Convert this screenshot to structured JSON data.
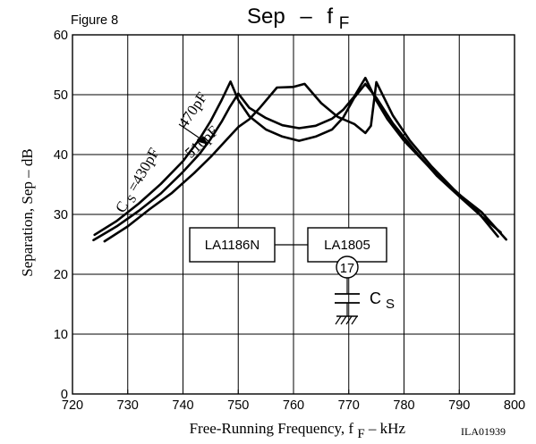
{
  "chart_data": {
    "type": "line",
    "figure_label": "Figure 8",
    "title": {
      "main": "Sep",
      "dash": "–",
      "symbol": "f",
      "subscript": "F"
    },
    "ylabel": "Separation, Sep  –  dB",
    "xlabel": {
      "prefix": "Free-Running Frequency, f",
      "subscript": "F",
      "suffix": "  –  kHz"
    },
    "code": "ILA01939",
    "xlim": [
      720,
      800
    ],
    "ylim": [
      0,
      60
    ],
    "xticks": [
      720,
      730,
      740,
      750,
      760,
      770,
      780,
      790,
      800
    ],
    "yticks": [
      0,
      10,
      20,
      30,
      40,
      50,
      60
    ],
    "grid": true,
    "series": [
      {
        "name": "CS=430pF",
        "x": [
          723.8,
          728,
          732,
          736,
          740,
          743,
          745,
          747,
          748.5,
          750,
          752,
          755,
          758,
          761,
          764,
          767,
          769,
          771,
          773,
          775,
          777,
          780,
          785,
          790,
          794,
          798.5
        ],
        "y": [
          25.7,
          28,
          30.6,
          33.5,
          37.1,
          40.1,
          42.6,
          45.5,
          48,
          50.2,
          47.8,
          46.1,
          44.9,
          44.4,
          44.8,
          46,
          47.5,
          49.7,
          52.8,
          49,
          45.9,
          42.3,
          37.5,
          33.3,
          30.4,
          25.8
        ]
      },
      {
        "name": "470pF",
        "x": [
          724,
          728,
          732,
          736,
          740,
          743,
          745,
          747,
          748.6,
          750,
          752,
          755,
          758,
          761,
          764,
          767,
          769,
          771,
          773,
          775,
          778,
          782,
          786,
          790,
          794,
          797.5
        ],
        "y": [
          26.6,
          28.9,
          31.8,
          35.1,
          38.9,
          42.6,
          45.6,
          49.1,
          52.2,
          49.1,
          46.4,
          44.2,
          43,
          42.3,
          43,
          44.2,
          46.2,
          49.5,
          51.8,
          49.5,
          45.2,
          40.6,
          36.4,
          33,
          29.7,
          27
        ]
      },
      {
        "name": "510pF",
        "x": [
          725.8,
          730,
          734,
          738,
          742,
          745,
          748,
          750,
          752,
          754,
          757,
          760,
          762,
          765,
          768,
          771,
          773,
          774,
          775,
          778,
          781,
          785,
          789,
          793,
          797
        ],
        "y": [
          25.5,
          28,
          30.9,
          33.6,
          36.9,
          39.6,
          42.6,
          44.6,
          45.9,
          47.9,
          51.2,
          51.3,
          51.8,
          48.6,
          46.3,
          45.1,
          43.6,
          44.8,
          52.1,
          46.5,
          42.4,
          38,
          34.2,
          30.8,
          26.3
        ]
      }
    ],
    "annotations": [
      {
        "id": "cs430",
        "prefix": "C",
        "subscript": "S",
        "suffix": "=430pF",
        "x": 732.5,
        "y": 35.3
      },
      {
        "id": "c470",
        "text": "470pF",
        "x": 742.5,
        "y": 47
      },
      {
        "id": "c510",
        "text": "510pF",
        "x": 744,
        "y": 41.5
      }
    ],
    "circuit": {
      "ic_left": "LA1186N",
      "ic_right": "LA1805",
      "pin": "17",
      "capacitor": {
        "prefix": "C",
        "subscript": "S"
      }
    },
    "line_color": "#000000"
  }
}
